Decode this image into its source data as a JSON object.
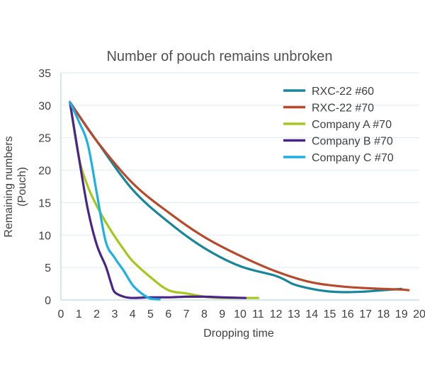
{
  "chart_data": {
    "type": "line",
    "title": "Number of pouch remains unbroken",
    "xlabel": "Dropping time",
    "ylabel_lines": [
      "Remaining numbers",
      "(Pouch)"
    ],
    "xlim": [
      0,
      20
    ],
    "ylim": [
      0,
      35
    ],
    "x_ticks": [
      "0",
      "1",
      "2",
      "3",
      "4",
      "5",
      "6",
      "7",
      "8",
      "9",
      "10",
      "11",
      "12",
      "13",
      "14",
      "15",
      "16",
      "17",
      "18",
      "19",
      "20"
    ],
    "y_ticks": [
      "0",
      "5",
      "10",
      "15",
      "20",
      "25",
      "30",
      "35"
    ],
    "grid": true,
    "legend_position": "top-right",
    "series": [
      {
        "name": "RXC-22 #60",
        "color": "#17869b",
        "x": [
          0.5,
          2,
          4,
          6,
          8,
          10,
          12,
          13,
          14,
          15,
          16,
          17,
          18,
          19
        ],
        "y": [
          30.5,
          24.5,
          17,
          12,
          8,
          5.2,
          3.7,
          2.4,
          1.7,
          1.3,
          1.2,
          1.3,
          1.5,
          1.7
        ]
      },
      {
        "name": "RXC-22 #70",
        "color": "#b84a2c",
        "x": [
          0.5,
          2,
          4,
          6,
          8,
          10,
          12,
          14,
          16,
          18,
          19,
          19.4
        ],
        "y": [
          30.5,
          24.5,
          18,
          13.5,
          9.7,
          6.8,
          4.4,
          2.7,
          2,
          1.7,
          1.6,
          1.5
        ]
      },
      {
        "name": "Company A #70",
        "color": "#a6c81d",
        "x": [
          0.5,
          1,
          1.5,
          2,
          2.5,
          3,
          3.5,
          4,
          5,
          6,
          7,
          8,
          9,
          10,
          11
        ],
        "y": [
          30.5,
          22,
          17.5,
          14.5,
          12,
          9.8,
          7.8,
          6,
          3.5,
          1.5,
          1,
          0.5,
          0.3,
          0.3,
          0.3
        ]
      },
      {
        "name": "Company B #70",
        "color": "#4a2487",
        "x": [
          0.5,
          1,
          1.5,
          2,
          2.5,
          2.8,
          3,
          3.5,
          4,
          5,
          6,
          7,
          8,
          9,
          10.3
        ],
        "y": [
          30.5,
          22,
          14,
          8.5,
          5.2,
          2.6,
          1.2,
          0.5,
          0.3,
          0.4,
          0.4,
          0.5,
          0.5,
          0.4,
          0.3
        ]
      },
      {
        "name": "Company C #70",
        "color": "#1eb0e3",
        "x": [
          0.5,
          1,
          1.5,
          2,
          2.5,
          3,
          3.5,
          4,
          4.5,
          5,
          5.5
        ],
        "y": [
          30.5,
          27.5,
          24,
          16.5,
          9,
          6.5,
          4.5,
          2.3,
          1,
          0.2,
          0.1
        ]
      }
    ]
  }
}
